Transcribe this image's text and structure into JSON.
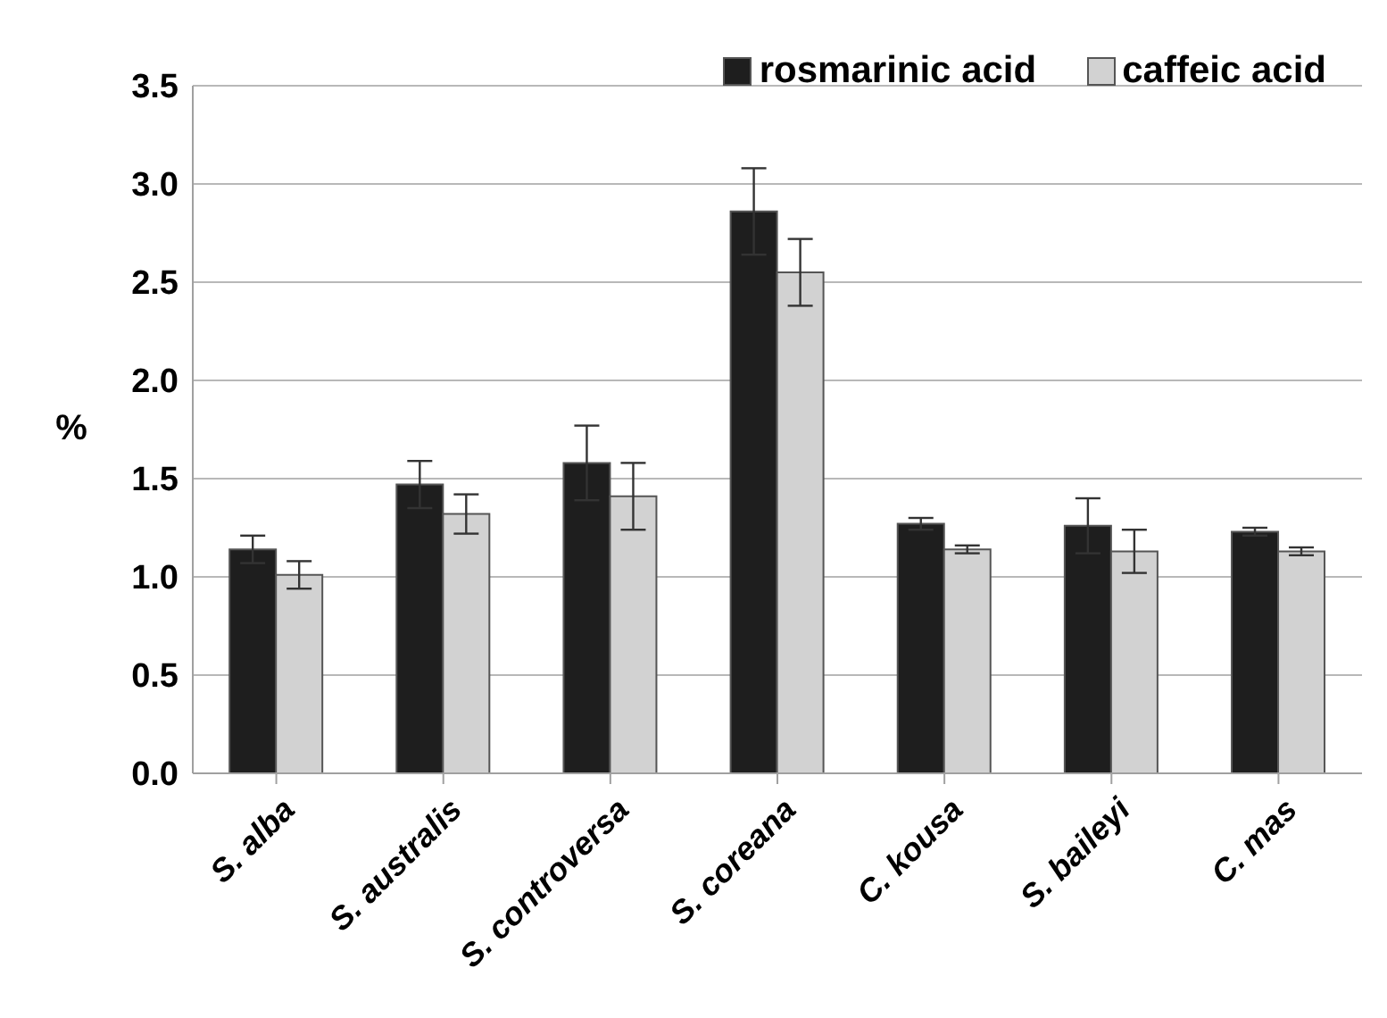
{
  "chart_data": {
    "type": "bar",
    "ylabel": "%",
    "categories": [
      "S. alba",
      "S. australis",
      "S. controversa",
      "S. coreana",
      "C. kousa",
      "S. baileyi",
      "C. mas"
    ],
    "series": [
      {
        "name": "rosmarinic acid",
        "color": "#1e1e1e",
        "values": [
          1.14,
          1.47,
          1.58,
          2.86,
          1.27,
          1.26,
          1.23
        ],
        "errors": [
          0.07,
          0.12,
          0.19,
          0.22,
          0.03,
          0.14,
          0.02
        ]
      },
      {
        "name": "caffeic acid",
        "color": "#d2d2d2",
        "values": [
          1.01,
          1.32,
          1.41,
          2.55,
          1.14,
          1.13,
          1.13
        ],
        "errors": [
          0.07,
          0.1,
          0.17,
          0.17,
          0.02,
          0.11,
          0.02
        ]
      }
    ],
    "ylim": [
      0,
      3.5
    ],
    "yticks": [
      {
        "value": 0,
        "label": "0.0"
      },
      {
        "value": 0.5,
        "label": "0.5"
      },
      {
        "value": 1,
        "label": "1.0"
      },
      {
        "value": 1.5,
        "label": "1.5"
      },
      {
        "value": 2,
        "label": "2.0"
      },
      {
        "value": 2.5,
        "label": "2.5"
      },
      {
        "value": 3,
        "label": "3.0"
      },
      {
        "value": 3.5,
        "label": "3.5"
      }
    ],
    "grid": "y",
    "legend": "top right"
  }
}
